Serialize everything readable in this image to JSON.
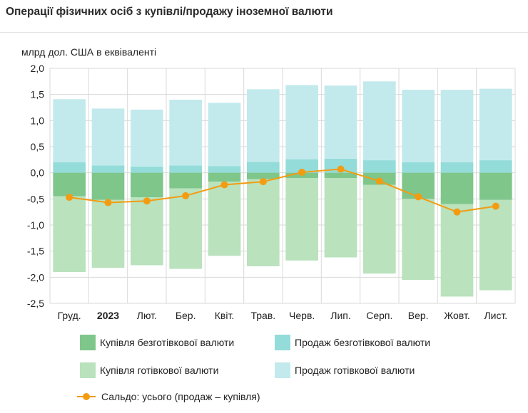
{
  "title": "Операції фізичних осіб з купівлі/продажу іноземної валюти",
  "colors": {
    "buy_noncash": "#7fc68b",
    "sell_noncash": "#93dcd9",
    "buy_cash": "#b9e2bd",
    "sell_cash": "#c2eaec",
    "balance": "#f39c12",
    "grid": "#d9d9d9"
  },
  "chart_data": {
    "type": "bar",
    "stacked": true,
    "ylabel": "млрд дол. США в еквіваленті",
    "ylim": [
      -2.5,
      2.0
    ],
    "yticks": [
      "2,0",
      "1,5",
      "1,0",
      "0,5",
      "0,0",
      "-0,5",
      "-1,0",
      "-1,5",
      "-2,0",
      "-2,5"
    ],
    "ytick_values": [
      2.0,
      1.5,
      1.0,
      0.5,
      0.0,
      -0.5,
      -1.0,
      -1.5,
      -2.0,
      -2.5
    ],
    "categories": [
      "Груд.",
      "2023",
      "Лют.",
      "Бер.",
      "Квіт.",
      "Трав.",
      "Черв.",
      "Лип.",
      "Серп.",
      "Вер.",
      "Жовт.",
      "Лист."
    ],
    "bold_category": "2023",
    "grid": true,
    "series": [
      {
        "name": "Купівля безготівкової валюти",
        "key": "buy_noncash",
        "color_key": "buy_noncash",
        "values": [
          -0.45,
          -0.52,
          -0.47,
          -0.3,
          -0.17,
          -0.12,
          -0.1,
          -0.1,
          -0.23,
          -0.5,
          -0.6,
          -0.52
        ]
      },
      {
        "name": "Продаж безготівкової валюти",
        "key": "sell_noncash",
        "color_key": "sell_noncash",
        "values": [
          0.2,
          0.14,
          0.12,
          0.14,
          0.13,
          0.21,
          0.26,
          0.27,
          0.24,
          0.2,
          0.2,
          0.24
        ]
      },
      {
        "name": "Купівля готівкової валюти",
        "key": "buy_cash",
        "color_key": "buy_cash",
        "values": [
          -1.45,
          -1.3,
          -1.3,
          -1.54,
          -1.42,
          -1.67,
          -1.58,
          -1.52,
          -1.7,
          -1.55,
          -1.77,
          -1.73
        ]
      },
      {
        "name": "Продаж готівкової валюти",
        "key": "sell_cash",
        "color_key": "sell_cash",
        "values": [
          1.21,
          1.09,
          1.09,
          1.26,
          1.21,
          1.39,
          1.42,
          1.4,
          1.51,
          1.39,
          1.39,
          1.37
        ]
      },
      {
        "name": "Сальдо: усього (продаж – купівля)",
        "key": "balance",
        "color_key": "balance",
        "type": "line",
        "values": [
          -0.47,
          -0.57,
          -0.54,
          -0.44,
          -0.23,
          -0.17,
          0.01,
          0.07,
          -0.16,
          -0.46,
          -0.75,
          -0.64
        ]
      }
    ],
    "legend_position": "bottom"
  }
}
